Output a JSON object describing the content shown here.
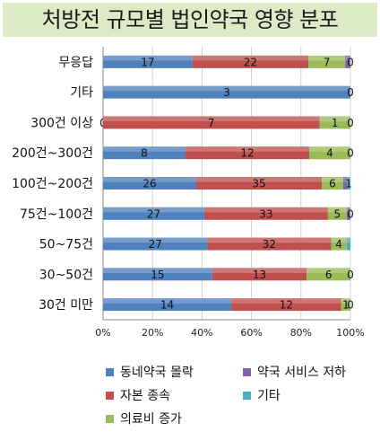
{
  "chart_data": {
    "type": "bar",
    "orientation": "horizontal",
    "stacked": "percent",
    "title": "처방전 규모별 법인약국 영향 분포",
    "categories": [
      "무응답",
      "기타",
      "300건 이상",
      "200건~300건",
      "100건~200건",
      "75건~100건",
      "50~75건",
      "30~50건",
      "30건 미만"
    ],
    "series": [
      {
        "name": "동네약국 몰락",
        "color": "#4f81bd",
        "values": [
          17,
          3,
          0,
          8,
          26,
          27,
          27,
          15,
          14
        ],
        "labels": [
          "17",
          "3",
          "0",
          "8",
          "26",
          "27",
          "27",
          "15",
          "14"
        ]
      },
      {
        "name": "자본 종속",
        "color": "#c0504d",
        "values": [
          22,
          0,
          7,
          12,
          35,
          33,
          32,
          13,
          12
        ],
        "labels": [
          "22",
          "",
          "7",
          "12",
          "35",
          "33",
          "32",
          "13",
          "12"
        ]
      },
      {
        "name": "의료비 증가",
        "color": "#9bbb59",
        "values": [
          7,
          0,
          1,
          4,
          6,
          5,
          4,
          6,
          1
        ],
        "labels": [
          "7",
          "",
          "1",
          "4",
          "6",
          "5",
          "4",
          "6",
          "1"
        ]
      },
      {
        "name": "약국 서비스 저하",
        "color": "#8064a2",
        "values": [
          1,
          0,
          0,
          0,
          1,
          1,
          0,
          0,
          0
        ],
        "labels": [
          "",
          "",
          "",
          "",
          "",
          "",
          "",
          "",
          ""
        ]
      },
      {
        "name": "기타",
        "color": "#4bacc6",
        "values": [
          0,
          0,
          0,
          0,
          1,
          0,
          1,
          0,
          0
        ],
        "labels": [
          "0",
          "0",
          "0",
          "0",
          "1",
          "0",
          "",
          "0",
          "0"
        ]
      }
    ],
    "xaxis": {
      "ticks": [
        "0%",
        "20%",
        "40%",
        "60%",
        "80%",
        "100%"
      ],
      "range": [
        0,
        100
      ]
    },
    "grid": true,
    "legend": {
      "position": "bottom",
      "order": [
        "동네약국 몰락",
        "약국 서비스 저하",
        "자본 종속",
        "기타",
        "의료비 증가"
      ]
    }
  }
}
